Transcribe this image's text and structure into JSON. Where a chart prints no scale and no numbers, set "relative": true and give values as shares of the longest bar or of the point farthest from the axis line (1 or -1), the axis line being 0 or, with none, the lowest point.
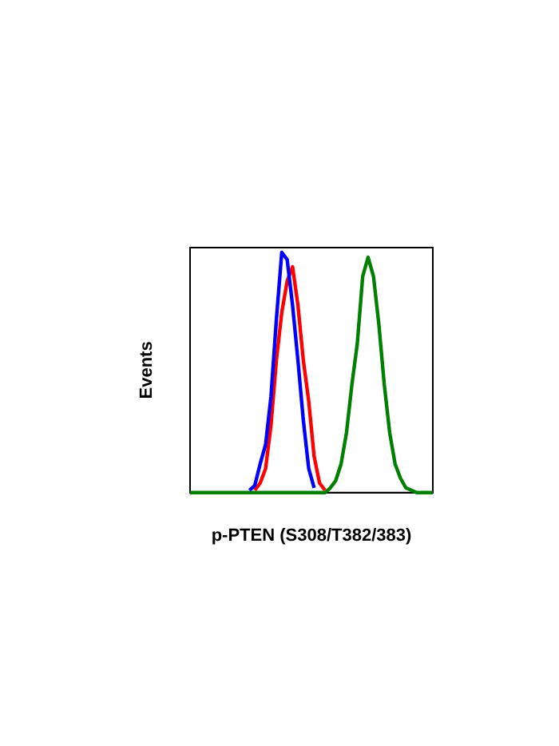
{
  "chart_data": {
    "type": "line",
    "relative": true,
    "xlabel": "p-PTEN (S308/T382/383)",
    "ylabel": "Events",
    "grid": false,
    "legend": false,
    "marker": "none",
    "line_style": "solid",
    "categories": [
      null,
      null,
      null,
      null,
      null,
      null,
      null,
      null,
      null,
      null,
      null,
      null,
      null,
      null,
      null,
      null,
      null,
      null,
      null,
      null,
      null,
      null,
      null,
      null,
      null,
      null,
      null,
      null,
      null,
      null,
      null,
      null,
      null,
      null,
      null,
      null,
      null,
      null,
      null,
      null,
      null,
      null,
      null,
      null,
      null,
      null
    ],
    "series": [
      {
        "color": "#0000ff",
        "values": [
          null,
          null,
          null,
          null,
          null,
          null,
          null,
          null,
          null,
          null,
          null,
          0.01,
          0.03,
          0.12,
          0.2,
          0.4,
          0.72,
          1,
          0.97,
          0.78,
          0.55,
          0.3,
          0.1,
          0.02,
          null,
          null,
          null,
          null,
          null,
          null,
          null,
          null,
          null,
          null,
          null,
          null,
          null,
          null,
          null,
          null,
          null,
          null,
          null,
          null,
          null,
          null
        ]
      },
      {
        "color": "#ff0000",
        "values": [
          null,
          null,
          null,
          null,
          null,
          null,
          null,
          null,
          null,
          null,
          null,
          null,
          0.01,
          0.04,
          0.1,
          0.28,
          0.55,
          0.75,
          0.88,
          0.94,
          0.78,
          0.55,
          0.38,
          0.15,
          0.04,
          0.01,
          null,
          null,
          null,
          null,
          null,
          null,
          null,
          null,
          null,
          null,
          null,
          null,
          null,
          null,
          null,
          null,
          null,
          null,
          null,
          null
        ]
      },
      {
        "color": "#008000",
        "values": [
          0,
          0,
          0,
          0,
          0,
          0,
          0,
          0,
          0,
          0,
          0,
          0,
          0,
          0,
          0,
          0,
          0,
          0,
          0,
          0,
          0,
          0,
          0,
          0,
          0,
          0,
          0.02,
          0.05,
          0.12,
          0.25,
          0.45,
          0.62,
          0.9,
          0.98,
          0.9,
          0.7,
          0.45,
          0.25,
          0.12,
          0.06,
          0.02,
          0.01,
          0,
          0,
          0,
          0
        ]
      }
    ]
  }
}
